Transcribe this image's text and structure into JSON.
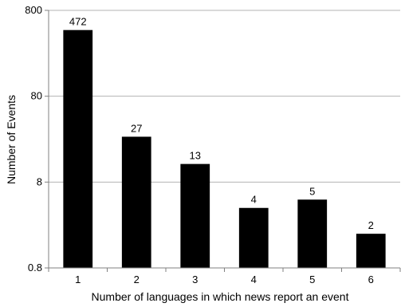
{
  "chart_data": {
    "type": "bar",
    "categories": [
      "1",
      "2",
      "3",
      "4",
      "5",
      "6"
    ],
    "values": [
      472,
      27,
      13,
      4,
      5,
      2
    ],
    "data_labels": [
      "472",
      "27",
      "13",
      "4",
      "5",
      "2"
    ],
    "xlabel": "Number of languages in which news report an event",
    "ylabel": "Number of Events",
    "y_scale": "log10",
    "ylim": [
      0.8,
      800
    ],
    "y_ticks": [
      0.8,
      8,
      80,
      800
    ],
    "y_tick_labels": [
      "0.8",
      "8",
      "80",
      "800"
    ],
    "grid": "horizontal",
    "legend": "none",
    "bar_color": "#000000",
    "grid_color": "#b3b3b3",
    "axis_color": "#808080"
  }
}
